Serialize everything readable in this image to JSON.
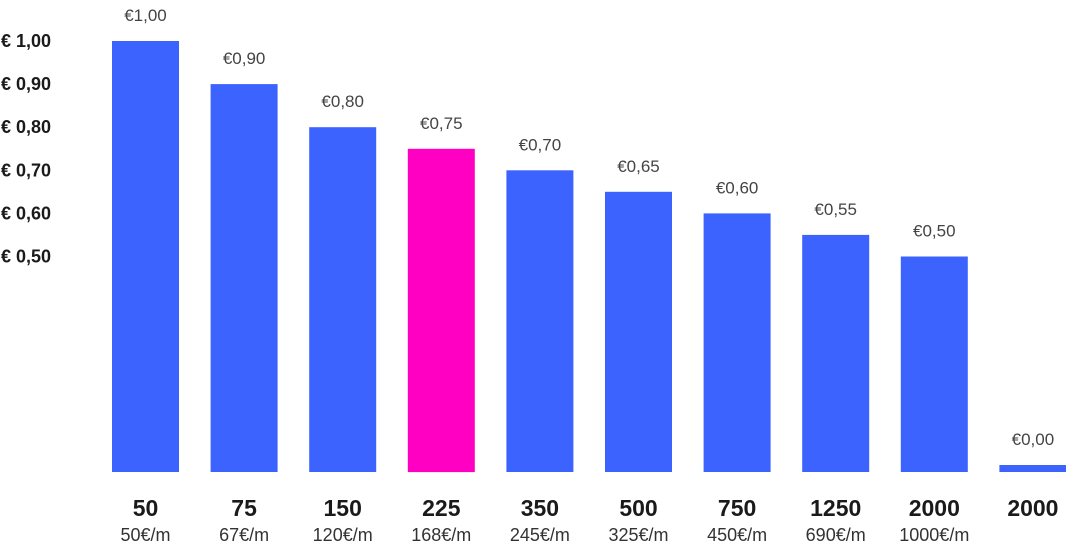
{
  "chart_data": {
    "type": "bar",
    "categories": [
      "50",
      "75",
      "150",
      "225",
      "350",
      "500",
      "750",
      "1250",
      "2000",
      "2000"
    ],
    "sublabels": [
      "50€/m",
      "67€/m",
      "120€/m",
      "168€/m",
      "245€/m",
      "325€/m",
      "450€/m",
      "690€/m",
      "1000€/m",
      ""
    ],
    "values": [
      1.0,
      0.9,
      0.8,
      0.75,
      0.7,
      0.65,
      0.6,
      0.55,
      0.5,
      0.0
    ],
    "value_labels": [
      "€1,00",
      "€0,90",
      "€0,80",
      "€0,75",
      "€0,70",
      "€0,65",
      "€0,60",
      "€0,55",
      "€0,50",
      "€0,00"
    ],
    "highlight_index": 3,
    "yticks": [
      1.0,
      0.9,
      0.8,
      0.7,
      0.6,
      0.5
    ],
    "ytick_labels": [
      "€ 1,00",
      "€ 0,90",
      "€ 0,80",
      "€ 0,70",
      "€ 0,60",
      "€ 0,50"
    ],
    "ylim": [
      0,
      1.0
    ],
    "grid": false,
    "title": "",
    "xlabel": "",
    "ylabel": ""
  },
  "colors": {
    "bar": "#3d63ff",
    "highlight": "#ff00c3"
  }
}
